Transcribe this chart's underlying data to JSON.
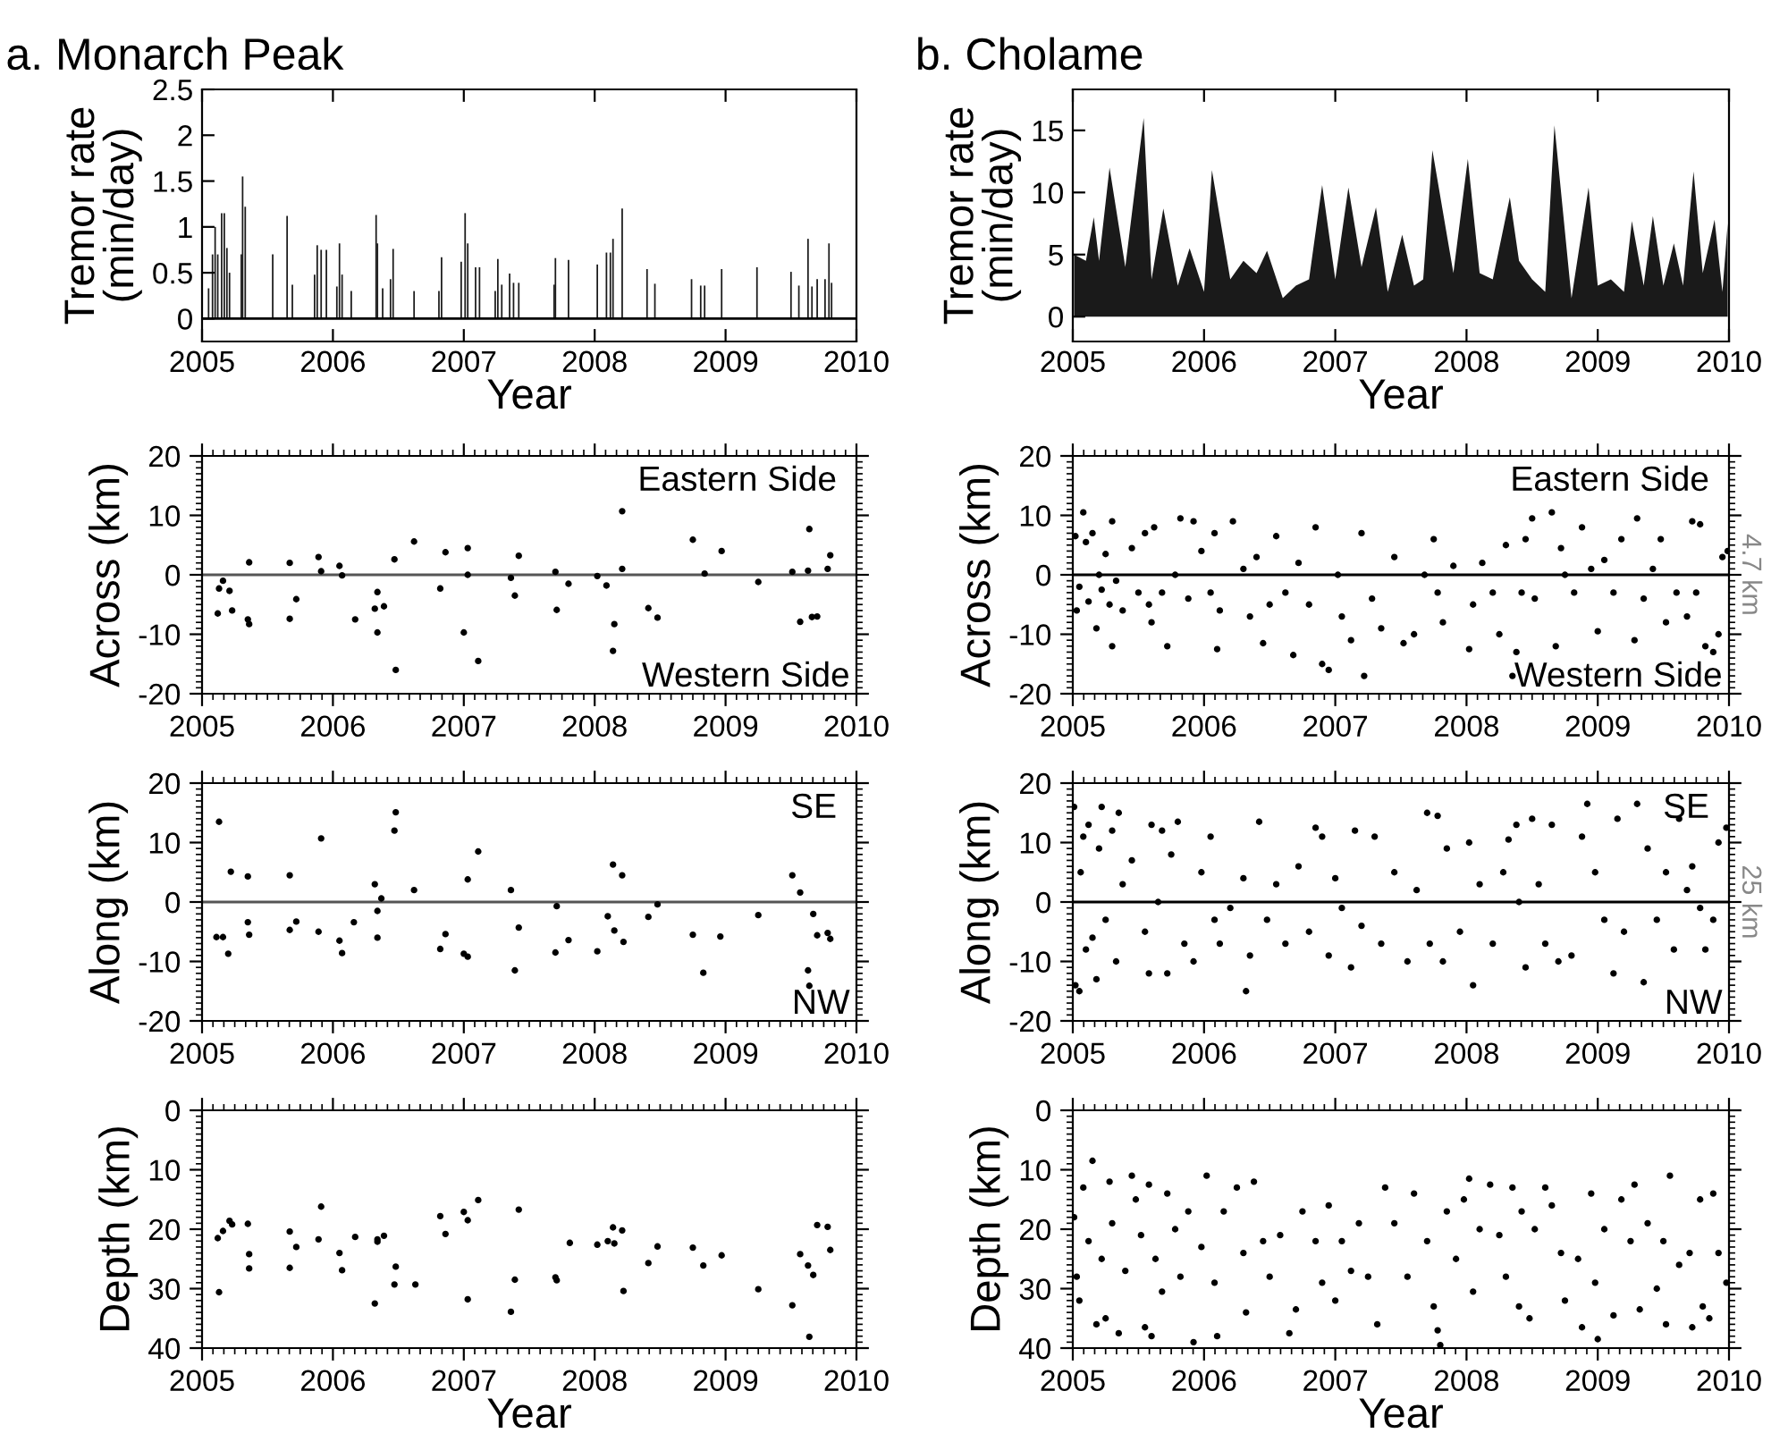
{
  "chart_data": [
    {
      "type": "bar",
      "title": "a. Monarch Peak",
      "xlabel": "Year",
      "ylabel": "Tremor rate\n(min/day)",
      "color": "#1a1a1a",
      "xlim": [
        2005,
        2010
      ],
      "xticks": [
        2005,
        2006,
        2007,
        2008,
        2009,
        2010
      ],
      "ylim": [
        -0.25,
        2.5
      ],
      "yticks": [
        0,
        {
          "value": 0.5,
          "label": "0.5"
        },
        1,
        {
          "value": 1.5,
          "label": "1.5"
        },
        2,
        {
          "value": 2.5,
          "label": "2.5"
        }
      ],
      "ref_lines": [
        {
          "axis": "y",
          "value": 0,
          "color": "#000000"
        }
      ],
      "x": [
        2005.05,
        2005.08,
        2005.1,
        2005.12,
        2005.15,
        2005.17,
        2005.19,
        2005.21,
        2005.3,
        2005.31,
        2005.33,
        2005.54,
        2005.65,
        2005.69,
        2005.86,
        2005.88,
        2005.91,
        2005.95,
        2006.03,
        2006.05,
        2006.07,
        2006.14,
        2006.33,
        2006.34,
        2006.38,
        2006.44,
        2006.46,
        2006.62,
        2006.81,
        2006.83,
        2006.98,
        2007.01,
        2007.03,
        2007.09,
        2007.12,
        2007.24,
        2007.26,
        2007.29,
        2007.35,
        2007.38,
        2007.42,
        2007.69,
        2007.7,
        2007.8,
        2008.02,
        2008.09,
        2008.12,
        2008.14,
        2008.21,
        2008.4,
        2008.46,
        2008.74,
        2008.81,
        2008.84,
        2008.97,
        2009.24,
        2009.5,
        2009.56,
        2009.63,
        2009.66,
        2009.7,
        2009.76,
        2009.79,
        2009.81
      ],
      "values": [
        0.33,
        0.7,
        1.0,
        0.7,
        1.15,
        1.15,
        0.77,
        0.5,
        0.7,
        1.55,
        1.22,
        0.7,
        1.12,
        0.37,
        0.48,
        0.8,
        0.75,
        0.75,
        0.35,
        0.82,
        0.48,
        0.3,
        1.13,
        0.82,
        0.33,
        0.43,
        0.76,
        0.3,
        0.3,
        0.67,
        0.62,
        1.15,
        0.82,
        0.56,
        0.56,
        0.3,
        0.65,
        0.37,
        0.49,
        0.39,
        0.39,
        0.37,
        0.66,
        0.64,
        0.59,
        0.72,
        0.72,
        0.87,
        1.2,
        0.54,
        0.38,
        0.43,
        0.36,
        0.36,
        0.54,
        0.56,
        0.51,
        0.36,
        0.87,
        0.35,
        0.43,
        0.43,
        0.82,
        0.39
      ]
    },
    {
      "type": "area",
      "title": "b. Cholame",
      "xlabel": "Year",
      "ylabel": "Tremor rate\n(min/day)",
      "color": "#1a1a1a",
      "xlim": [
        2005,
        2010
      ],
      "xticks": [
        2005,
        2006,
        2007,
        2008,
        2009,
        2010
      ],
      "ylim": [
        -2,
        18.3
      ],
      "yticks": [
        0,
        5,
        10,
        15
      ],
      "x": [
        2005.01,
        2005.1,
        2005.16,
        2005.2,
        2005.28,
        2005.4,
        2005.54,
        2005.6,
        2005.69,
        2005.8,
        2005.89,
        2006.0,
        2006.06,
        2006.2,
        2006.3,
        2006.4,
        2006.48,
        2006.6,
        2006.7,
        2006.8,
        2006.9,
        2007.0,
        2007.1,
        2007.2,
        2007.31,
        2007.4,
        2007.51,
        2007.6,
        2007.67,
        2007.74,
        2007.9,
        2008.01,
        2008.1,
        2008.2,
        2008.33,
        2008.4,
        2008.5,
        2008.6,
        2008.67,
        2008.8,
        2008.93,
        2009.0,
        2009.1,
        2009.2,
        2009.26,
        2009.35,
        2009.42,
        2009.5,
        2009.58,
        2009.65,
        2009.73,
        2009.8,
        2009.89,
        2009.95,
        2009.99
      ],
      "values": [
        5,
        4.5,
        8,
        4.5,
        12,
        4,
        16,
        3,
        8.7,
        2.5,
        5.5,
        2,
        11.8,
        3,
        4.5,
        3.5,
        5.3,
        1.5,
        2.5,
        3,
        10.6,
        3,
        10.4,
        4,
        8.8,
        2,
        6.6,
        2.5,
        3,
        13.4,
        3.5,
        12.7,
        3.5,
        3,
        9.6,
        4.5,
        3,
        2,
        15.4,
        1.5,
        10.4,
        2.5,
        3,
        2,
        7.7,
        2.5,
        8.1,
        2.5,
        5.9,
        2.5,
        11.7,
        3.5,
        7.8,
        2,
        7.5
      ]
    },
    {
      "type": "scatter",
      "ylabel": "Across (km)",
      "color": "#000000",
      "marker": "circle",
      "xlim": [
        2005,
        2010
      ],
      "xticks": [
        2005,
        2006,
        2007,
        2008,
        2009,
        2010
      ],
      "ylim": [
        -20,
        20
      ],
      "yticks": [
        -20,
        -10,
        0,
        10,
        20
      ],
      "ref_lines": [
        {
          "axis": "y",
          "value": 0,
          "color": "#555555"
        }
      ],
      "annotations": [
        "Eastern Side",
        "Western Side"
      ],
      "x": [
        2005.12,
        2005.13,
        2005.16,
        2005.21,
        2005.23,
        2005.35,
        2005.36,
        2005.36,
        2005.67,
        2005.67,
        2005.72,
        2005.89,
        2005.91,
        2006.05,
        2006.07,
        2006.17,
        2006.32,
        2006.34,
        2006.34,
        2006.39,
        2006.47,
        2006.48,
        2006.62,
        2006.82,
        2006.86,
        2007.0,
        2007.03,
        2007.03,
        2007.11,
        2007.36,
        2007.39,
        2007.42,
        2007.7,
        2007.71,
        2007.8,
        2008.02,
        2008.09,
        2008.14,
        2008.15,
        2008.21,
        2008.21,
        2008.41,
        2008.48,
        2008.75,
        2008.84,
        2008.97,
        2009.25,
        2009.51,
        2009.57,
        2009.63,
        2009.64,
        2009.66,
        2009.7,
        2009.78,
        2009.8
      ],
      "values": [
        -6.5,
        -2.3,
        -1.0,
        -2.7,
        -6.0,
        -7.5,
        -8.3,
        2.1,
        2.0,
        -7.4,
        -4.1,
        3.0,
        0.6,
        1.5,
        -0.1,
        -7.5,
        -5.7,
        -2.9,
        -9.7,
        -5.3,
        2.6,
        -16.0,
        5.6,
        -2.3,
        3.8,
        -9.7,
        4.5,
        0.0,
        -14.5,
        -0.5,
        -3.5,
        3.2,
        0.5,
        -5.9,
        -1.5,
        -0.2,
        -1.8,
        -12.8,
        -8.3,
        1.0,
        10.7,
        -5.6,
        -7.2,
        5.9,
        0.2,
        4.0,
        -1.2,
        0.5,
        -7.9,
        0.7,
        7.7,
        -7.1,
        -7.0,
        1.0,
        3.3
      ]
    },
    {
      "type": "scatter",
      "ylabel": "Across (km)",
      "color": "#000000",
      "marker": "circle",
      "xlim": [
        2005,
        2010
      ],
      "xticks": [
        2005,
        2006,
        2007,
        2008,
        2009,
        2010
      ],
      "ylim": [
        -20,
        20
      ],
      "yticks": [
        -20,
        -10,
        0,
        10,
        20
      ],
      "ref_lines": [
        {
          "axis": "y",
          "value": 0,
          "color": "#000000"
        }
      ],
      "annotations": [
        "Eastern Side",
        "Western Side",
        "4.7 km"
      ],
      "x": [
        2005.02,
        2005.03,
        2005.05,
        2005.08,
        2005.1,
        2005.12,
        2005.15,
        2005.18,
        2005.2,
        2005.22,
        2005.25,
        2005.28,
        2005.3,
        2005.3,
        2005.33,
        2005.38,
        2005.45,
        2005.5,
        2005.55,
        2005.58,
        2005.6,
        2005.62,
        2005.68,
        2005.72,
        2005.78,
        2005.82,
        2005.88,
        2005.92,
        2005.98,
        2006.05,
        2006.08,
        2006.1,
        2006.12,
        2006.22,
        2006.3,
        2006.35,
        2006.4,
        2006.45,
        2006.5,
        2006.55,
        2006.62,
        2006.68,
        2006.72,
        2006.8,
        2006.85,
        2006.9,
        2006.95,
        2007.02,
        2007.05,
        2007.12,
        2007.2,
        2007.22,
        2007.28,
        2007.35,
        2007.45,
        2007.52,
        2007.6,
        2007.68,
        2007.75,
        2007.78,
        2007.82,
        2007.9,
        2008.02,
        2008.05,
        2008.12,
        2008.2,
        2008.25,
        2008.3,
        2008.35,
        2008.38,
        2008.42,
        2008.45,
        2008.5,
        2008.52,
        2008.65,
        2008.68,
        2008.72,
        2008.75,
        2008.82,
        2008.88,
        2008.95,
        2009.0,
        2009.05,
        2009.12,
        2009.18,
        2009.28,
        2009.3,
        2009.35,
        2009.42,
        2009.48,
        2009.52,
        2009.6,
        2009.68,
        2009.72,
        2009.75,
        2009.78,
        2009.82,
        2009.88,
        2009.92,
        2009.95,
        2009.99
      ],
      "values": [
        6.5,
        -6,
        -2,
        10.5,
        5.5,
        -4.5,
        7,
        -9,
        0,
        -2.5,
        3.5,
        -5,
        9,
        -12,
        -1,
        -6,
        4.5,
        -3,
        7,
        -5,
        -8,
        8,
        -3,
        -12,
        0,
        9.5,
        -4,
        9,
        4,
        -3,
        7,
        -12.5,
        -6,
        9,
        1,
        -7,
        3,
        -11.5,
        -5,
        6.5,
        -3,
        -13.5,
        2,
        -5,
        8,
        -15,
        -16,
        0,
        -7,
        -11,
        7,
        -17,
        -4,
        -9,
        3,
        -11.5,
        -10,
        0,
        6,
        -3,
        -8,
        1.5,
        -12.5,
        -5,
        2,
        -3,
        -10,
        5,
        -17,
        -13,
        -3,
        6,
        9.5,
        -4,
        10.5,
        -12,
        4.5,
        0,
        -3,
        8,
        1,
        -9.5,
        2.5,
        -3,
        6,
        -11,
        9.5,
        -4,
        1,
        6,
        -8,
        -3,
        -7,
        9,
        -3,
        8.5,
        -12,
        -13,
        -10,
        3,
        4
      ]
    },
    {
      "type": "scatter",
      "ylabel": "Along (km)",
      "color": "#000000",
      "marker": "circle",
      "xlim": [
        2005,
        2010
      ],
      "xticks": [
        2005,
        2006,
        2007,
        2008,
        2009,
        2010
      ],
      "ylim": [
        -20,
        20
      ],
      "yticks": [
        -20,
        -10,
        0,
        10,
        20
      ],
      "ref_lines": [
        {
          "axis": "y",
          "value": 0,
          "color": "#555555"
        }
      ],
      "annotations": [
        "SE",
        "NW"
      ],
      "x": [
        2005.13,
        2005.11,
        2005.16,
        2005.2,
        2005.22,
        2005.35,
        2005.35,
        2005.36,
        2005.67,
        2005.67,
        2005.72,
        2005.89,
        2005.91,
        2006.05,
        2006.07,
        2006.16,
        2006.32,
        2006.34,
        2006.34,
        2006.37,
        2006.47,
        2006.48,
        2006.62,
        2006.82,
        2006.86,
        2007.0,
        2007.03,
        2007.03,
        2007.11,
        2007.36,
        2007.39,
        2007.42,
        2007.7,
        2007.71,
        2007.8,
        2008.02,
        2008.1,
        2008.14,
        2008.15,
        2008.21,
        2008.22,
        2008.41,
        2008.48,
        2008.75,
        2008.83,
        2008.96,
        2009.25,
        2009.51,
        2009.57,
        2009.63,
        2009.64,
        2009.67,
        2009.7,
        2009.78,
        2009.8
      ],
      "values": [
        13.5,
        -5.9,
        -5.9,
        -8.7,
        5.1,
        4.3,
        -3.4,
        -5.5,
        4.5,
        -4.7,
        -3.3,
        -5.0,
        10.7,
        -6.5,
        -8.6,
        -3.4,
        3.0,
        -1.5,
        -6.0,
        0.6,
        12.0,
        15.1,
        2.0,
        -7.9,
        -5.4,
        -8.7,
        -9.2,
        3.8,
        8.5,
        2.0,
        -11.5,
        -4.3,
        -8.5,
        -0.7,
        -6.4,
        -8.3,
        -2.4,
        6.3,
        -4.8,
        4.5,
        -6.7,
        -2.5,
        -0.4,
        -5.5,
        -11.9,
        -5.8,
        -2.2,
        4.5,
        1.6,
        -11.5,
        -14.1,
        -2.0,
        -5.6,
        -5.2,
        -6.2
      ]
    },
    {
      "type": "scatter",
      "ylabel": "Along (km)",
      "color": "#000000",
      "marker": "circle",
      "xlim": [
        2005,
        2010
      ],
      "xticks": [
        2005,
        2006,
        2007,
        2008,
        2009,
        2010
      ],
      "ylim": [
        -20,
        20
      ],
      "yticks": [
        -20,
        -10,
        0,
        10,
        20
      ],
      "ref_lines": [
        {
          "axis": "y",
          "value": 0,
          "color": "#000000"
        }
      ],
      "annotations": [
        "SE",
        "NW",
        "25 km"
      ],
      "x": [
        2005.01,
        2005.02,
        2005.05,
        2005.06,
        2005.08,
        2005.1,
        2005.12,
        2005.15,
        2005.18,
        2005.2,
        2005.22,
        2005.25,
        2005.3,
        2005.33,
        2005.35,
        2005.38,
        2005.45,
        2005.55,
        2005.58,
        2005.6,
        2005.65,
        2005.68,
        2005.72,
        2005.75,
        2005.8,
        2005.85,
        2005.92,
        2005.98,
        2006.05,
        2006.08,
        2006.12,
        2006.2,
        2006.3,
        2006.32,
        2006.35,
        2006.42,
        2006.48,
        2006.55,
        2006.62,
        2006.72,
        2006.8,
        2006.85,
        2006.9,
        2006.95,
        2007.0,
        2007.05,
        2007.12,
        2007.15,
        2007.2,
        2007.3,
        2007.35,
        2007.45,
        2007.55,
        2007.62,
        2007.7,
        2007.72,
        2007.78,
        2007.82,
        2007.85,
        2007.95,
        2008.02,
        2008.05,
        2008.1,
        2008.2,
        2008.28,
        2008.32,
        2008.38,
        2008.4,
        2008.45,
        2008.5,
        2008.55,
        2008.6,
        2008.65,
        2008.7,
        2008.8,
        2008.88,
        2008.92,
        2008.98,
        2009.05,
        2009.12,
        2009.15,
        2009.2,
        2009.3,
        2009.35,
        2009.38,
        2009.45,
        2009.52,
        2009.58,
        2009.62,
        2009.68,
        2009.72,
        2009.78,
        2009.82,
        2009.88,
        2009.92,
        2009.98
      ],
      "values": [
        16,
        -14,
        -15,
        5,
        11,
        -8,
        13,
        -6,
        -13,
        9,
        16,
        -3,
        12,
        -10,
        15,
        3,
        7,
        -5,
        -12,
        13,
        0,
        12,
        -12,
        8,
        13.5,
        -7,
        -10,
        5,
        11,
        -3,
        -7,
        -1,
        4,
        -15,
        -9,
        13.5,
        -3,
        3,
        -7,
        6,
        -5,
        12.5,
        11,
        -9,
        4,
        -1,
        -11,
        12,
        -4,
        11,
        -7,
        5,
        -10,
        2,
        15,
        -7,
        14.5,
        -10,
        9,
        -5,
        10,
        -14,
        3,
        -7,
        5,
        10.5,
        13,
        0,
        -11,
        14,
        3,
        -7,
        13,
        -10,
        -9,
        11,
        16.5,
        5,
        -3,
        -12,
        14,
        -5,
        16.5,
        -13.5,
        9,
        -3,
        5,
        -8,
        14,
        2,
        6,
        -1,
        -8,
        -3,
        10,
        12.5
      ]
    },
    {
      "type": "scatter",
      "xlabel": "Year",
      "ylabel": "Depth (km)",
      "color": "#000000",
      "marker": "circle",
      "xlim": [
        2005,
        2010
      ],
      "xticks": [
        2005,
        2006,
        2007,
        2008,
        2009,
        2010
      ],
      "ylim": [
        40,
        0
      ],
      "yticks": [
        0,
        10,
        20,
        30,
        40
      ],
      "x": [
        2005.12,
        2005.16,
        2005.13,
        2005.21,
        2005.23,
        2005.35,
        2005.36,
        2005.36,
        2005.67,
        2005.67,
        2005.72,
        2005.89,
        2005.91,
        2006.05,
        2006.07,
        2006.17,
        2006.32,
        2006.34,
        2006.34,
        2006.39,
        2006.47,
        2006.48,
        2006.63,
        2006.82,
        2006.86,
        2007.0,
        2007.03,
        2007.03,
        2007.11,
        2007.36,
        2007.39,
        2007.42,
        2007.7,
        2007.71,
        2007.81,
        2008.02,
        2008.1,
        2008.14,
        2008.15,
        2008.21,
        2008.22,
        2008.41,
        2008.48,
        2008.75,
        2008.83,
        2008.97,
        2009.25,
        2009.51,
        2009.57,
        2009.63,
        2009.64,
        2009.67,
        2009.7,
        2009.78,
        2009.8
      ],
      "values": [
        21.5,
        20.3,
        30.6,
        18.6,
        19.2,
        19.1,
        24.2,
        26.6,
        20.4,
        26.5,
        23.0,
        21.7,
        16.2,
        24.0,
        26.9,
        21.3,
        32.5,
        21.7,
        22.1,
        21.1,
        29.3,
        26.3,
        29.3,
        17.8,
        20.8,
        17.1,
        18.5,
        31.8,
        15.1,
        33.9,
        28.5,
        16.7,
        28.1,
        28.6,
        22.3,
        22.6,
        22.0,
        19.7,
        22.4,
        20.2,
        30.4,
        25.7,
        22.9,
        23.1,
        26.1,
        24.4,
        30.1,
        32.8,
        24.2,
        26.1,
        38.1,
        27.7,
        19.3,
        19.6,
        23.5
      ]
    },
    {
      "type": "scatter",
      "xlabel": "Year",
      "ylabel": "Depth (km)",
      "color": "#000000",
      "marker": "circle",
      "xlim": [
        2005,
        2010
      ],
      "xticks": [
        2005,
        2006,
        2007,
        2008,
        2009,
        2010
      ],
      "ylim": [
        40,
        0
      ],
      "yticks": [
        0,
        10,
        20,
        30,
        40
      ],
      "x": [
        2005.01,
        2005.03,
        2005.05,
        2005.08,
        2005.12,
        2005.15,
        2005.18,
        2005.22,
        2005.25,
        2005.28,
        2005.3,
        2005.35,
        2005.4,
        2005.45,
        2005.48,
        2005.52,
        2005.55,
        2005.58,
        2005.6,
        2005.63,
        2005.68,
        2005.72,
        2005.78,
        2005.82,
        2005.88,
        2005.92,
        2005.98,
        2006.02,
        2006.08,
        2006.1,
        2006.15,
        2006.25,
        2006.3,
        2006.32,
        2006.38,
        2006.45,
        2006.5,
        2006.58,
        2006.65,
        2006.7,
        2006.75,
        2006.85,
        2006.9,
        2006.95,
        2007.0,
        2007.05,
        2007.12,
        2007.18,
        2007.25,
        2007.32,
        2007.38,
        2007.45,
        2007.55,
        2007.6,
        2007.7,
        2007.75,
        2007.78,
        2007.8,
        2007.85,
        2007.92,
        2007.98,
        2008.02,
        2008.05,
        2008.1,
        2008.18,
        2008.25,
        2008.3,
        2008.35,
        2008.4,
        2008.42,
        2008.48,
        2008.52,
        2008.6,
        2008.65,
        2008.72,
        2008.75,
        2008.85,
        2008.88,
        2008.95,
        2008.98,
        2009.0,
        2009.05,
        2009.12,
        2009.18,
        2009.25,
        2009.28,
        2009.32,
        2009.38,
        2009.45,
        2009.5,
        2009.52,
        2009.55,
        2009.62,
        2009.7,
        2009.72,
        2009.78,
        2009.8,
        2009.85,
        2009.88,
        2009.92,
        2009.98
      ],
      "values": [
        18,
        28,
        32,
        13,
        22,
        8.5,
        36,
        25,
        35,
        12,
        19,
        37.5,
        27,
        11,
        15,
        21,
        36.5,
        12.5,
        38,
        25,
        30.5,
        14,
        20,
        28,
        17,
        39,
        23,
        11,
        29,
        38,
        17,
        13,
        24,
        34,
        12,
        22,
        28,
        21,
        37.5,
        33.5,
        17,
        22,
        29,
        16,
        32,
        22,
        27,
        19,
        28,
        36,
        13,
        19,
        28,
        14,
        22,
        33,
        37,
        39.5,
        17,
        25,
        15,
        11.5,
        30.5,
        20,
        12.5,
        21,
        28,
        13,
        33,
        17,
        35,
        20,
        13,
        16,
        24,
        32,
        25,
        36.5,
        14,
        29,
        38.5,
        20,
        34.5,
        15,
        22,
        12.5,
        33.5,
        19,
        30,
        22,
        36,
        11,
        26,
        24,
        36.5,
        15,
        33,
        35,
        14,
        24,
        29
      ]
    }
  ]
}
